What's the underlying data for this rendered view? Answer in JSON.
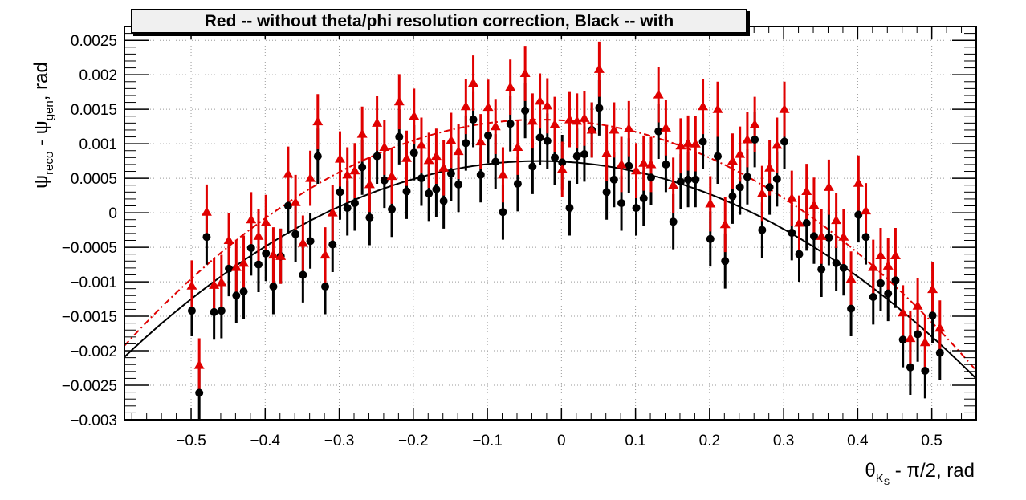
{
  "chart_data": {
    "type": "scatter",
    "title": "Red -- without theta/phi resolution correction, Black -- with",
    "xlabel": {
      "greek": "θ",
      "subscript": "K",
      "subsubscript": "S",
      "rest": " - π/2, rad"
    },
    "ylabel": {
      "sym1": "ψ",
      "sub1": "reco",
      "minus": " - ",
      "sym2": "ψ",
      "sub2": "gen",
      "rest": ", rad"
    },
    "xlim": [
      -0.59,
      0.56
    ],
    "ylim": [
      -0.003,
      0.0027
    ],
    "grid": true,
    "xticks": [
      -0.5,
      -0.4,
      -0.3,
      -0.2,
      -0.1,
      0,
      0.1,
      0.2,
      0.3,
      0.4,
      0.5
    ],
    "xtick_labels": [
      "−0.5",
      "−0.4",
      "−0.3",
      "−0.2",
      "−0.1",
      "0",
      "0.1",
      "0.2",
      "0.3",
      "0.4",
      "0.5"
    ],
    "yticks": [
      -0.003,
      -0.0025,
      -0.002,
      -0.0015,
      -0.001,
      -0.0005,
      0,
      0.0005,
      0.001,
      0.0015,
      0.002,
      0.0025
    ],
    "ytick_labels": [
      "−0.003",
      "−0.0025",
      "−0.002",
      "−0.0015",
      "−0.001",
      "−0.0005",
      "0",
      "0.0005",
      "0.001",
      "0.0015",
      "0.002",
      "0.0025"
    ],
    "series": [
      {
        "color": "#000000",
        "marker": "circle",
        "fit": {
          "type": "quadratic",
          "peak_x": -0.03,
          "peak_y": 0.00075,
          "curvature": -0.00906,
          "line_style": "solid"
        },
        "points": [
          [
            -0.499,
            -0.00142,
            0.00037
          ],
          [
            -0.489,
            -0.00261,
            0.00039
          ],
          [
            -0.479,
            -0.00035,
            0.0004
          ],
          [
            -0.469,
            -0.00144,
            0.0004
          ],
          [
            -0.459,
            -0.00142,
            0.0004
          ],
          [
            -0.449,
            -0.00081,
            0.0004
          ],
          [
            -0.439,
            -0.0012,
            0.0004
          ],
          [
            -0.429,
            -0.00114,
            0.0004
          ],
          [
            -0.419,
            -0.00051,
            0.0004
          ],
          [
            -0.409,
            -0.00075,
            0.0004
          ],
          [
            -0.399,
            -0.00059,
            0.0004
          ],
          [
            -0.389,
            -0.00107,
            0.0004
          ],
          [
            -0.379,
            -0.00063,
            0.0004
          ],
          [
            -0.369,
            0.0001,
            0.0004
          ],
          [
            -0.359,
            -0.00031,
            0.0004
          ],
          [
            -0.349,
            -0.0009,
            0.0004
          ],
          [
            -0.339,
            -0.00041,
            0.0004
          ],
          [
            -0.329,
            0.00082,
            0.0004
          ],
          [
            -0.319,
            -0.00107,
            0.0004
          ],
          [
            -0.309,
            -0.00046,
            0.0004
          ],
          [
            -0.299,
            0.0003,
            0.0004
          ],
          [
            -0.289,
            7e-05,
            0.0004
          ],
          [
            -0.279,
            0.00014,
            0.0004
          ],
          [
            -0.269,
            0.00066,
            0.0004
          ],
          [
            -0.259,
            -7e-05,
            0.0004
          ],
          [
            -0.249,
            0.00082,
            0.0004
          ],
          [
            -0.239,
            0.00047,
            0.0004
          ],
          [
            -0.229,
            5e-05,
            0.0004
          ],
          [
            -0.219,
            0.0011,
            0.0004
          ],
          [
            -0.209,
            0.00031,
            0.0004
          ],
          [
            -0.199,
            0.00087,
            0.0004
          ],
          [
            -0.189,
            0.0005,
            0.0004
          ],
          [
            -0.179,
            0.00028,
            0.0004
          ],
          [
            -0.169,
            0.00034,
            0.0004
          ],
          [
            -0.159,
            0.00017,
            0.0004
          ],
          [
            -0.149,
            0.00057,
            0.0004
          ],
          [
            -0.139,
            0.00041,
            0.0004
          ],
          [
            -0.129,
            0.00101,
            0.0004
          ],
          [
            -0.119,
            0.00135,
            0.0004
          ],
          [
            -0.109,
            0.00055,
            0.0004
          ],
          [
            -0.099,
            0.00112,
            0.0004
          ],
          [
            -0.089,
            0.00074,
            0.0004
          ],
          [
            -0.079,
            1e-05,
            0.0004
          ],
          [
            -0.069,
            0.00129,
            0.0004
          ],
          [
            -0.059,
            0.00042,
            0.0004
          ],
          [
            -0.049,
            0.00148,
            0.0004
          ],
          [
            -0.039,
            0.00067,
            0.0004
          ],
          [
            -0.029,
            0.00109,
            0.0004
          ],
          [
            -0.019,
            0.00104,
            0.0004
          ],
          [
            -0.009,
            0.0008,
            0.0004
          ],
          [
            0.001,
            0.00073,
            0.0004
          ],
          [
            0.011,
            7e-05,
            0.0004
          ],
          [
            0.021,
            0.00082,
            0.0004
          ],
          [
            0.031,
            0.00085,
            0.0004
          ],
          [
            0.041,
            0.0012,
            0.0004
          ],
          [
            0.051,
            0.00152,
            0.0004
          ],
          [
            0.061,
            0.0003,
            0.0004
          ],
          [
            0.071,
            0.00048,
            0.0004
          ],
          [
            0.081,
            0.00014,
            0.0004
          ],
          [
            0.091,
            0.00068,
            0.0004
          ],
          [
            0.101,
            7e-05,
            0.0004
          ],
          [
            0.111,
            0.00021,
            0.0004
          ],
          [
            0.121,
            0.00051,
            0.0004
          ],
          [
            0.131,
            0.00118,
            0.0004
          ],
          [
            0.141,
            0.0007,
            0.0004
          ],
          [
            0.151,
            -0.00013,
            0.0004
          ],
          [
            0.161,
            0.00045,
            0.0004
          ],
          [
            0.171,
            0.00048,
            0.0004
          ],
          [
            0.181,
            0.00048,
            0.0004
          ],
          [
            0.191,
            0.00103,
            0.0004
          ],
          [
            0.201,
            -0.00038,
            0.0004
          ],
          [
            0.211,
            0.00082,
            0.0004
          ],
          [
            0.221,
            -0.0007,
            0.0004
          ],
          [
            0.231,
            0.00024,
            0.0004
          ],
          [
            0.241,
            0.00037,
            0.0004
          ],
          [
            0.251,
            0.00052,
            0.0004
          ],
          [
            0.261,
            0.00106,
            0.0004
          ],
          [
            0.271,
            -0.00025,
            0.0004
          ],
          [
            0.281,
            0.00037,
            0.0004
          ],
          [
            0.291,
            0.00049,
            0.0004
          ],
          [
            0.301,
            0.00103,
            0.0004
          ],
          [
            0.311,
            -0.00029,
            0.0004
          ],
          [
            0.321,
            -0.0006,
            0.0004
          ],
          [
            0.331,
            -0.00015,
            0.0004
          ],
          [
            0.341,
            -0.00034,
            0.0004
          ],
          [
            0.351,
            -0.00082,
            0.0004
          ],
          [
            0.361,
            -0.00036,
            0.0004
          ],
          [
            0.371,
            -0.00073,
            0.0004
          ],
          [
            0.381,
            -0.0008,
            0.0004
          ],
          [
            0.391,
            -0.00139,
            0.0004
          ],
          [
            0.401,
            -3e-05,
            0.0004
          ],
          [
            0.411,
            -0.00035,
            0.0004
          ],
          [
            0.421,
            -0.00122,
            0.0004
          ],
          [
            0.431,
            -0.00102,
            0.0004
          ],
          [
            0.441,
            -0.00117,
            0.0004
          ],
          [
            0.451,
            -0.00098,
            0.0004
          ],
          [
            0.461,
            -0.00184,
            0.0004
          ],
          [
            0.471,
            -0.00224,
            0.0004
          ],
          [
            0.481,
            -0.00176,
            0.0004
          ],
          [
            0.491,
            -0.00229,
            0.0004
          ],
          [
            0.501,
            -0.00149,
            0.0004
          ],
          [
            0.511,
            -0.00203,
            0.0004
          ]
        ]
      },
      {
        "color": "#e00000",
        "marker": "triangle",
        "fit": {
          "type": "quadratic",
          "peak_x": -0.03,
          "peak_y": 0.00135,
          "curvature": -0.01045,
          "line_style": "dash-dot"
        },
        "points": [
          [
            -0.499,
            -0.00106,
            0.00037
          ],
          [
            -0.489,
            -0.00221,
            0.00039
          ],
          [
            -0.479,
            1e-05,
            0.0004
          ],
          [
            -0.469,
            -0.00105,
            0.0004
          ],
          [
            -0.459,
            -0.00101,
            0.0004
          ],
          [
            -0.449,
            -0.0004,
            0.0004
          ],
          [
            -0.439,
            -0.00079,
            0.0004
          ],
          [
            -0.429,
            -0.00073,
            0.0004
          ],
          [
            -0.419,
            -0.0001,
            0.0004
          ],
          [
            -0.409,
            -0.00034,
            0.0004
          ],
          [
            -0.399,
            -0.00014,
            0.0004
          ],
          [
            -0.389,
            -0.00061,
            0.0004
          ],
          [
            -0.379,
            -0.00063,
            0.0004
          ],
          [
            -0.369,
            0.00056,
            0.0004
          ],
          [
            -0.359,
            0.00015,
            0.0004
          ],
          [
            -0.349,
            -0.00044,
            0.0004
          ],
          [
            -0.339,
            0.0005,
            0.0004
          ],
          [
            -0.329,
            0.00132,
            0.0004
          ],
          [
            -0.319,
            -0.00061,
            0.0004
          ],
          [
            -0.309,
            0.0,
            0.0004
          ],
          [
            -0.299,
            0.00078,
            0.0004
          ],
          [
            -0.289,
            0.00055,
            0.0004
          ],
          [
            -0.279,
            0.00061,
            0.0004
          ],
          [
            -0.269,
            0.00114,
            0.0004
          ],
          [
            -0.259,
            0.00041,
            0.0004
          ],
          [
            -0.249,
            0.0013,
            0.0004
          ],
          [
            -0.239,
            0.00095,
            0.0004
          ],
          [
            -0.229,
            0.00053,
            0.0004
          ],
          [
            -0.219,
            0.00161,
            0.0004
          ],
          [
            -0.209,
            0.00079,
            0.0004
          ],
          [
            -0.199,
            0.0014,
            0.0004
          ],
          [
            -0.189,
            0.00098,
            0.0004
          ],
          [
            -0.179,
            0.00076,
            0.0004
          ],
          [
            -0.169,
            0.00082,
            0.0004
          ],
          [
            -0.159,
            0.00065,
            0.0004
          ],
          [
            -0.149,
            0.00105,
            0.0004
          ],
          [
            -0.139,
            0.00089,
            0.0004
          ],
          [
            -0.129,
            0.00154,
            0.0004
          ],
          [
            -0.119,
            0.00188,
            0.0004
          ],
          [
            -0.109,
            0.00103,
            0.0004
          ],
          [
            -0.099,
            0.00153,
            0.0004
          ],
          [
            -0.089,
            0.00125,
            0.0004
          ],
          [
            -0.079,
            0.00055,
            0.0004
          ],
          [
            -0.069,
            0.00182,
            0.0004
          ],
          [
            -0.059,
            0.00095,
            0.0004
          ],
          [
            -0.049,
            0.00202,
            0.0004
          ],
          [
            -0.039,
            0.00133,
            0.0004
          ],
          [
            -0.029,
            0.00162,
            0.0004
          ],
          [
            -0.019,
            0.00155,
            0.0004
          ],
          [
            -0.009,
            0.00128,
            0.0004
          ],
          [
            0.001,
            0.00063,
            0.0004
          ],
          [
            0.011,
            0.00135,
            0.0004
          ],
          [
            0.021,
            0.00133,
            0.0004
          ],
          [
            0.031,
            0.00137,
            0.0004
          ],
          [
            0.041,
            0.0012,
            0.0004
          ],
          [
            0.051,
            0.00208,
            0.0004
          ],
          [
            0.061,
            0.00086,
            0.0004
          ],
          [
            0.071,
            0.0012,
            0.0004
          ],
          [
            0.081,
            0.0007,
            0.0004
          ],
          [
            0.091,
            0.00122,
            0.0004
          ],
          [
            0.101,
            0.00061,
            0.0004
          ],
          [
            0.111,
            0.00072,
            0.0004
          ],
          [
            0.121,
            0.0007,
            0.0004
          ],
          [
            0.131,
            0.00171,
            0.0004
          ],
          [
            0.141,
            0.00123,
            0.0004
          ],
          [
            0.151,
            0.0004,
            0.0004
          ],
          [
            0.161,
            0.00097,
            0.0004
          ],
          [
            0.171,
            0.00101,
            0.0004
          ],
          [
            0.181,
            0.001,
            0.0004
          ],
          [
            0.191,
            0.00154,
            0.0004
          ],
          [
            0.201,
            0.00013,
            0.0004
          ],
          [
            0.211,
            0.0015,
            0.0004
          ],
          [
            0.221,
            -0.00017,
            0.0004
          ],
          [
            0.231,
            0.00075,
            0.0004
          ],
          [
            0.241,
            0.00085,
            0.0004
          ],
          [
            0.251,
            0.00106,
            0.0004
          ],
          [
            0.261,
            0.00128,
            0.0004
          ],
          [
            0.271,
            0.00028,
            0.0004
          ],
          [
            0.281,
            0.00065,
            0.0004
          ],
          [
            0.291,
            0.00098,
            0.0004
          ],
          [
            0.301,
            0.0015,
            0.0004
          ],
          [
            0.311,
            0.00021,
            0.0004
          ],
          [
            0.321,
            -0.00015,
            0.0004
          ],
          [
            0.331,
            0.00031,
            0.0004
          ],
          [
            0.341,
            0.00011,
            0.0004
          ],
          [
            0.351,
            -0.00034,
            0.0004
          ],
          [
            0.361,
            0.00037,
            0.0004
          ],
          [
            0.371,
            -0.00011,
            0.0004
          ],
          [
            0.381,
            -0.00035,
            0.0004
          ],
          [
            0.391,
            -0.00096,
            0.0004
          ],
          [
            0.401,
            0.00043,
            0.0004
          ],
          [
            0.411,
            3e-05,
            0.0004
          ],
          [
            0.421,
            -0.00079,
            0.0004
          ],
          [
            0.431,
            -0.00062,
            0.0004
          ],
          [
            0.441,
            -0.00077,
            0.0004
          ],
          [
            0.451,
            -0.00062,
            0.0004
          ],
          [
            0.461,
            -0.00145,
            0.0004
          ],
          [
            0.471,
            -0.00182,
            0.0004
          ],
          [
            0.481,
            -0.00135,
            0.0004
          ],
          [
            0.491,
            -0.00188,
            0.0004
          ],
          [
            0.501,
            -0.00111,
            0.0004
          ],
          [
            0.511,
            -0.00167,
            0.0004
          ]
        ]
      }
    ]
  }
}
